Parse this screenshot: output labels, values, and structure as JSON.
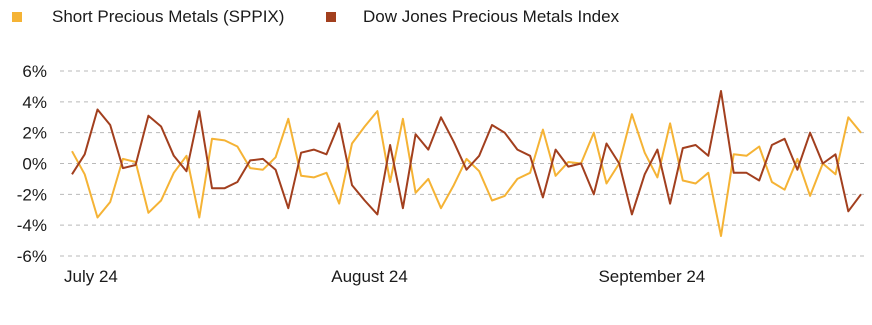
{
  "chart_data": {
    "type": "line",
    "title": "",
    "xlabel": "",
    "ylabel": "",
    "x_tick_labels": [
      "July 24",
      "August 24",
      "September 24"
    ],
    "y_tick_labels": [
      "6%",
      "4%",
      "2%",
      "0%",
      "-2%",
      "-4%",
      "-6%"
    ],
    "ylim": [
      -6,
      6
    ],
    "y_unit": "%",
    "grid": "horizontal dashed",
    "legend_position": "top-left",
    "series": [
      {
        "name": "Short Precious Metals (SPPIX)",
        "color": "#F5B335",
        "values": [
          0.8,
          -0.7,
          -3.5,
          -2.5,
          0.3,
          0.1,
          -3.2,
          -2.4,
          -0.6,
          0.5,
          -3.5,
          1.6,
          1.5,
          1.1,
          -0.3,
          -0.4,
          0.4,
          2.9,
          -0.8,
          -0.9,
          -0.6,
          -2.6,
          1.3,
          2.4,
          3.4,
          -1.2,
          2.9,
          -1.9,
          -1.0,
          -2.9,
          -1.4,
          0.3,
          -0.5,
          -2.4,
          -2.1,
          -1.0,
          -0.6,
          2.2,
          -0.8,
          0.1,
          0.0,
          2.0,
          -1.3,
          0.0,
          3.2,
          0.7,
          -0.9,
          2.6,
          -1.1,
          -1.3,
          -0.6,
          -4.7,
          0.6,
          0.5,
          1.1,
          -1.2,
          -1.7,
          0.3,
          -2.1,
          0.0,
          -0.7,
          3.0,
          2.0
        ]
      },
      {
        "name": "Dow Jones Precious Metals Index",
        "color": "#A23F1E",
        "values": [
          -0.7,
          0.6,
          3.5,
          2.5,
          -0.3,
          -0.1,
          3.1,
          2.4,
          0.5,
          -0.5,
          3.4,
          -1.6,
          -1.6,
          -1.2,
          0.2,
          0.3,
          -0.4,
          -2.9,
          0.7,
          0.9,
          0.6,
          2.6,
          -1.4,
          -2.4,
          -3.3,
          1.2,
          -2.9,
          1.9,
          0.9,
          3.0,
          1.4,
          -0.4,
          0.5,
          2.5,
          2.0,
          0.9,
          0.5,
          -2.2,
          0.9,
          -0.2,
          0.0,
          -2.0,
          1.3,
          0.0,
          -3.3,
          -0.7,
          0.9,
          -2.6,
          1.0,
          1.2,
          0.5,
          4.7,
          -0.6,
          -0.6,
          -1.1,
          1.2,
          1.6,
          -0.4,
          2.0,
          0.0,
          0.6,
          -3.1,
          -2.0
        ]
      }
    ]
  }
}
